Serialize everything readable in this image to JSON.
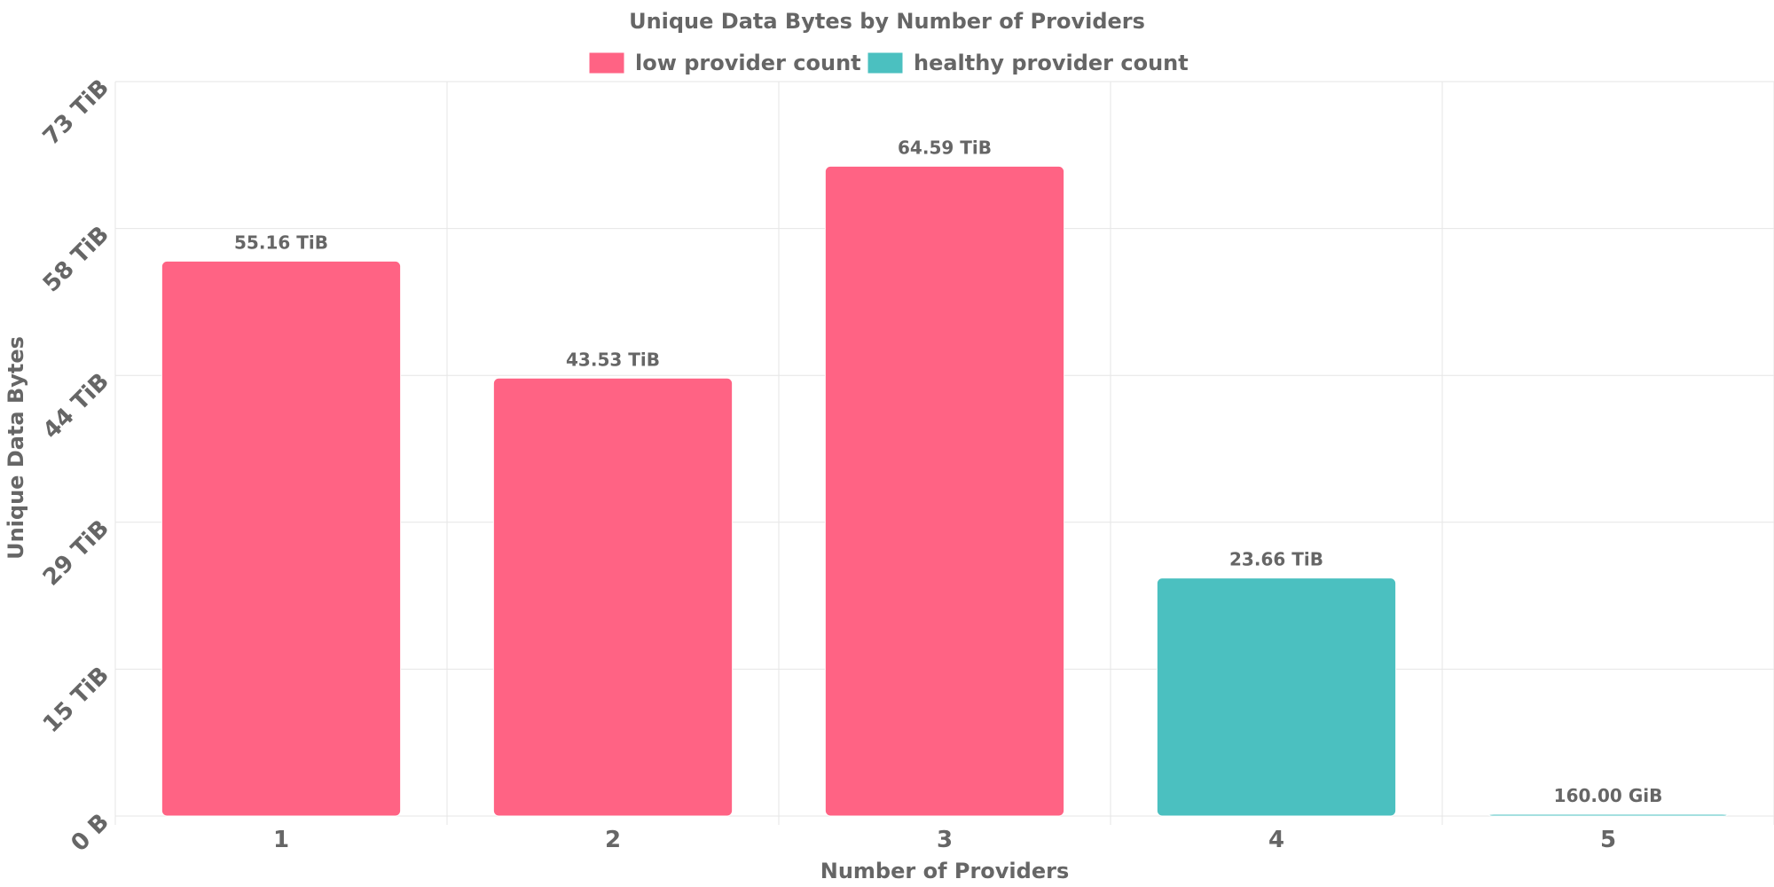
{
  "chart_data": {
    "type": "bar",
    "title": "Unique Data Bytes by Number of Providers",
    "xlabel": "Number of Providers",
    "ylabel": "Unique Data Bytes",
    "categories": [
      "1",
      "2",
      "3",
      "4",
      "5"
    ],
    "values_tib": [
      55.16,
      43.53,
      64.59,
      23.66,
      0.15625
    ],
    "data_labels": [
      "55.16 TiB",
      "43.53 TiB",
      "64.59 TiB",
      "23.66 TiB",
      "160.00 GiB"
    ],
    "bar_series": [
      "low provider count",
      "low provider count",
      "low provider count",
      "healthy provider count",
      "healthy provider count"
    ],
    "legend": [
      {
        "name": "low provider count",
        "color": "#ff6384"
      },
      {
        "name": "healthy provider count",
        "color": "#4bc0c0"
      }
    ],
    "legend_position": "top-center",
    "y_ticks": [
      "0 B",
      "15 TiB",
      "29 TiB",
      "44 TiB",
      "58 TiB",
      "73 TiB"
    ],
    "y_tick_values_tib": [
      0,
      14.6,
      29.2,
      43.8,
      58.4,
      73.0
    ],
    "ylim": [
      0,
      73
    ],
    "grid": true
  }
}
